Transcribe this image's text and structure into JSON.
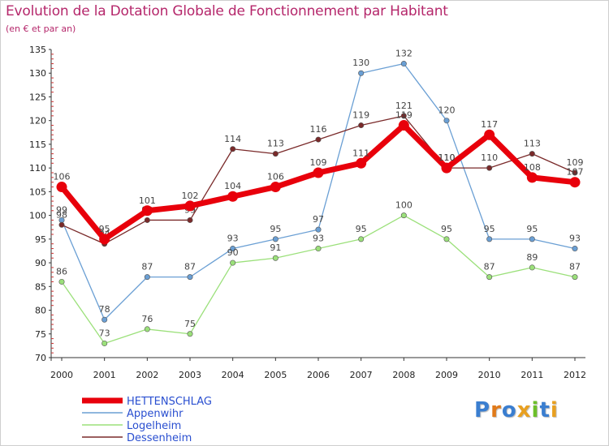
{
  "title": "Evolution de la Dotation Globale de Fonctionnement par Habitant",
  "subtitle": "(en € et par an)",
  "logo": {
    "text": "Proxiti",
    "colors": [
      "#3a7ed0",
      "#e07a1a",
      "#3a7ed0",
      "#e8a020",
      "#6cbf2a",
      "#3a7ed0",
      "#e8a020"
    ]
  },
  "chart_data": {
    "type": "line",
    "title": "Evolution de la Dotation Globale de Fonctionnement par Habitant",
    "subtitle": "(en € et par an)",
    "xlabel": "",
    "ylabel": "",
    "x": [
      "2000",
      "2001",
      "2002",
      "2003",
      "2004",
      "2005",
      "2006",
      "2007",
      "2008",
      "2009",
      "2010",
      "2011",
      "2012"
    ],
    "ylim": [
      70,
      135
    ],
    "yticks": [
      70,
      75,
      80,
      85,
      90,
      95,
      100,
      105,
      110,
      115,
      120,
      125,
      130,
      135
    ],
    "grid": false,
    "legend_position": "bottom-left",
    "series": [
      {
        "name": "HETTENSCHLAG",
        "color": "#e8000b",
        "emphasis": true,
        "values": [
          106,
          95,
          101,
          102,
          104,
          106,
          109,
          111,
          119,
          110,
          117,
          108,
          107
        ]
      },
      {
        "name": "Appenwihr",
        "color": "#6a9fd4",
        "emphasis": false,
        "values": [
          99,
          78,
          87,
          87,
          93,
          95,
          97,
          130,
          132,
          120,
          95,
          95,
          93
        ]
      },
      {
        "name": "Logelheim",
        "color": "#9be07a",
        "emphasis": false,
        "values": [
          86,
          73,
          76,
          75,
          90,
          91,
          93,
          95,
          100,
          95,
          87,
          89,
          87
        ]
      },
      {
        "name": "Dessenheim",
        "color": "#7a2a2a",
        "emphasis": false,
        "values": [
          98,
          94,
          99,
          99,
          114,
          113,
          116,
          119,
          121,
          110,
          110,
          113,
          109
        ]
      }
    ]
  }
}
